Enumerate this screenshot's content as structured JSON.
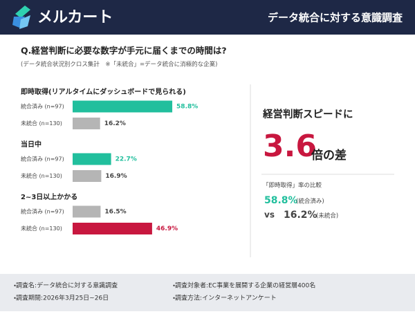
{
  "header": {
    "logo": "メルカート",
    "title": "データ統合に対する意識調査"
  },
  "question": "Q.経営判断に必要な数字が手元に届くまでの時間は?",
  "note": "(データ統合状況別クロス集計　※「未統合」=データ統合に消極的な企業)",
  "chart_data": {
    "type": "hbar-groups",
    "groups": [
      {
        "title": "即時取得(リアルタイムにダッシュボードで見られる)",
        "categories": [
          "統合済み (n=97)",
          "未統合 (n=130)"
        ],
        "values": [
          58.8,
          16.2
        ],
        "value_labels": [
          "58.8%",
          "16.2%"
        ],
        "colors": [
          "#21bf9d",
          "#b5b5b5"
        ],
        "label_colors": [
          "#21bf9d",
          "#444444"
        ]
      },
      {
        "title": "当日中",
        "categories": [
          "統合済み (n=97)",
          "未統合 (n=130)"
        ],
        "values": [
          22.7,
          16.9
        ],
        "value_labels": [
          "22.7%",
          "16.9%"
        ],
        "colors": [
          "#21bf9d",
          "#b5b5b5"
        ],
        "label_colors": [
          "#21bf9d",
          "#444444"
        ]
      },
      {
        "title": "2~3日以上かかる",
        "categories": [
          "統合済み (n=97)",
          "未統合 (n=130)"
        ],
        "values": [
          16.5,
          46.9
        ],
        "value_labels": [
          "16.5%",
          "46.9%"
        ],
        "colors": [
          "#b5b5b5",
          "#c8173f"
        ],
        "label_colors": [
          "#444444",
          "#c8173f"
        ]
      }
    ]
  },
  "sidebar": {
    "lead": "経営判断スピードに",
    "multiplier": 3.6,
    "suffix": "倍の差",
    "compare_title": "「即時取得」率の比較",
    "a_value": "58.8%",
    "a_label": "(統合済み)",
    "vs": "vs",
    "b_value": "16.2%",
    "b_label": "(未統合)"
  },
  "footer": {
    "items": [
      "・調査名:データ統合に対する意識調査",
      "・調査対象者:EC事業を展開する企業の経営層400名",
      "・調査期間:2026年3月25日~26日",
      "・調査方法:インターネットアンケート"
    ]
  }
}
